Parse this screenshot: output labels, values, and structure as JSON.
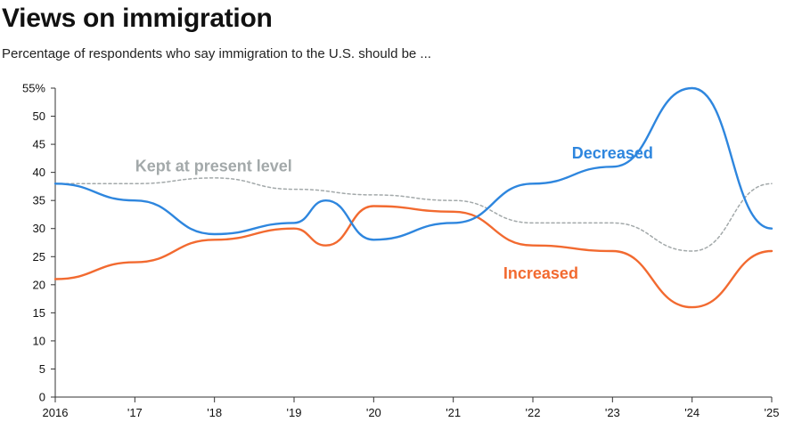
{
  "chart_data": {
    "type": "line",
    "title": "Views on immigration",
    "subtitle": "Percentage of respondents who say immigration to the U.S. should be ...",
    "x": [
      "2016",
      "'17",
      "'18",
      "'19",
      "'20",
      "'21",
      "'22",
      "'23",
      "'24",
      "'25"
    ],
    "ylim": [
      0,
      55
    ],
    "yticks": [
      "0",
      "5",
      "10",
      "15",
      "20",
      "25",
      "30",
      "35",
      "40",
      "45",
      "50",
      "55%"
    ],
    "grid": false,
    "series": [
      {
        "name": "Decreased",
        "color": "#2e86de",
        "style": "solid",
        "points": [
          [
            2016,
            38
          ],
          [
            2017,
            35
          ],
          [
            2018,
            29
          ],
          [
            2019,
            31
          ],
          [
            2019.4,
            35
          ],
          [
            2020,
            28
          ],
          [
            2021,
            31
          ],
          [
            2022,
            38
          ],
          [
            2023,
            41
          ],
          [
            2024,
            55
          ],
          [
            2025,
            30
          ]
        ]
      },
      {
        "name": "Increased",
        "color": "#f26a30",
        "style": "solid",
        "points": [
          [
            2016,
            21
          ],
          [
            2017,
            24
          ],
          [
            2018,
            28
          ],
          [
            2019,
            30
          ],
          [
            2019.4,
            27
          ],
          [
            2020,
            34
          ],
          [
            2021,
            33
          ],
          [
            2022,
            27
          ],
          [
            2023,
            26
          ],
          [
            2024,
            16
          ],
          [
            2025,
            26
          ]
        ]
      },
      {
        "name": "Kept at present level",
        "color": "#a3a9aa",
        "style": "dashed",
        "points": [
          [
            2016,
            38
          ],
          [
            2017,
            38
          ],
          [
            2018,
            39
          ],
          [
            2019,
            37
          ],
          [
            2020,
            36
          ],
          [
            2021,
            35
          ],
          [
            2022,
            31
          ],
          [
            2023,
            31
          ],
          [
            2024,
            26
          ],
          [
            2025,
            38
          ]
        ]
      }
    ],
    "legend_placement": "inline labels next to lines"
  }
}
